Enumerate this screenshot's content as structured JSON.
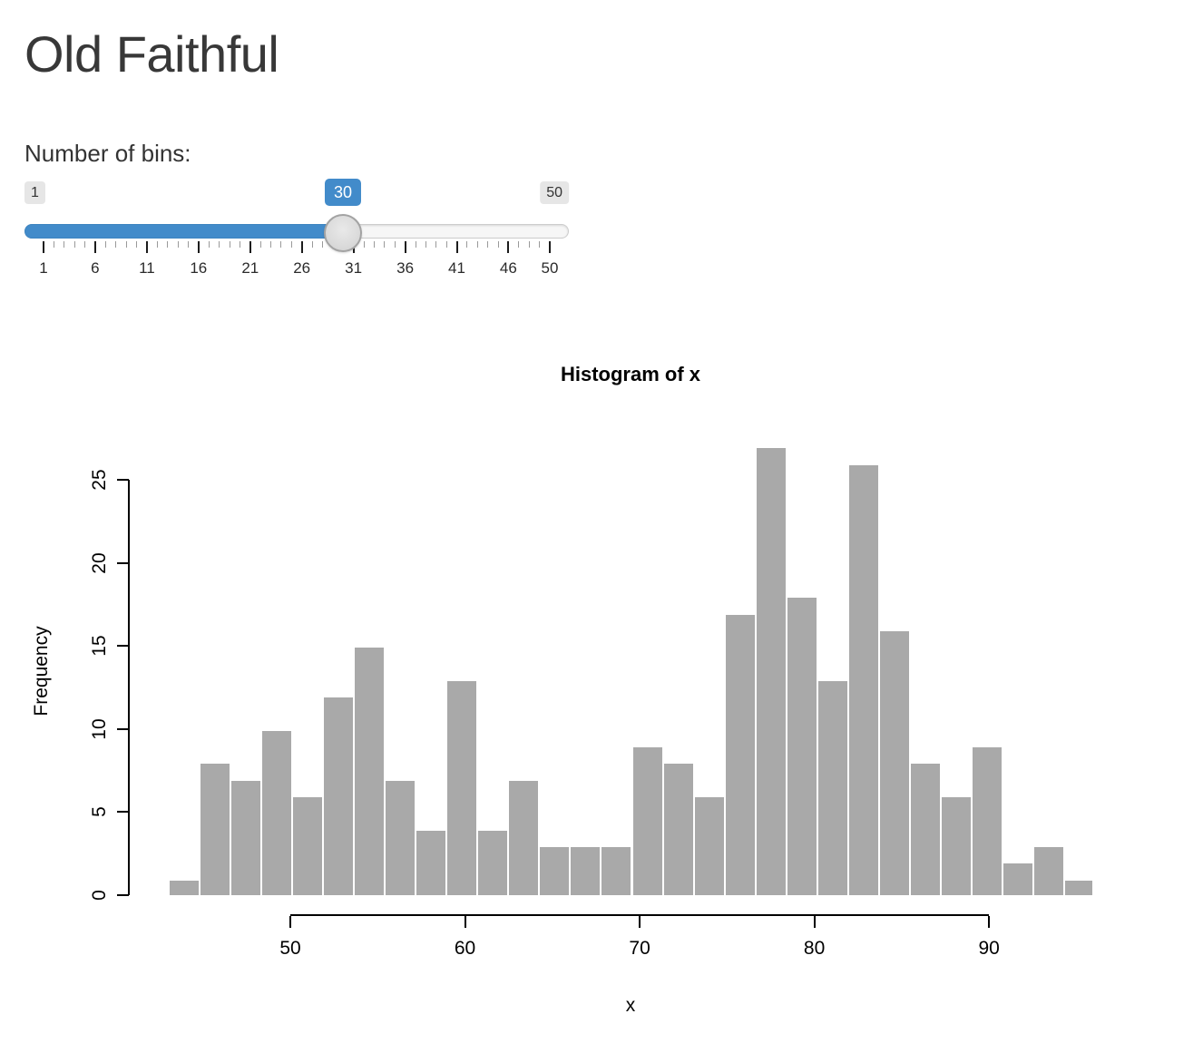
{
  "app": {
    "title": "Old Faithful"
  },
  "slider": {
    "label": "Number of bins:",
    "min": 1,
    "max": 50,
    "value": 30,
    "min_label": "1",
    "max_label": "50",
    "value_label": "30",
    "grid_major_values": [
      1,
      6,
      11,
      16,
      21,
      26,
      31,
      36,
      41,
      46,
      50
    ],
    "grid_major_labels": [
      "1",
      "6",
      "11",
      "16",
      "21",
      "26",
      "31",
      "36",
      "41",
      "46",
      "50"
    ],
    "accent_color": "#428bca",
    "track_color": "#f6f6f6",
    "handle_color": "#dcdcdc"
  },
  "chart_data": {
    "type": "bar",
    "title": "Histogram of x",
    "xlabel": "x",
    "ylabel": "Frequency",
    "xlim": [
      43,
      96
    ],
    "ylim": [
      0,
      27
    ],
    "bin_count": 30,
    "counts": [
      1,
      8,
      7,
      10,
      6,
      12,
      15,
      7,
      4,
      13,
      4,
      7,
      3,
      3,
      3,
      9,
      8,
      6,
      17,
      27,
      18,
      13,
      26,
      16,
      8,
      6,
      9,
      2,
      3,
      1
    ],
    "x_ticks": [
      50,
      60,
      70,
      80,
      90
    ],
    "y_ticks": [
      0,
      5,
      10,
      15,
      20,
      25
    ],
    "bar_color": "#A9A9A9",
    "bar_border_color": "#FFFFFF",
    "grid": false,
    "legend": "none"
  }
}
